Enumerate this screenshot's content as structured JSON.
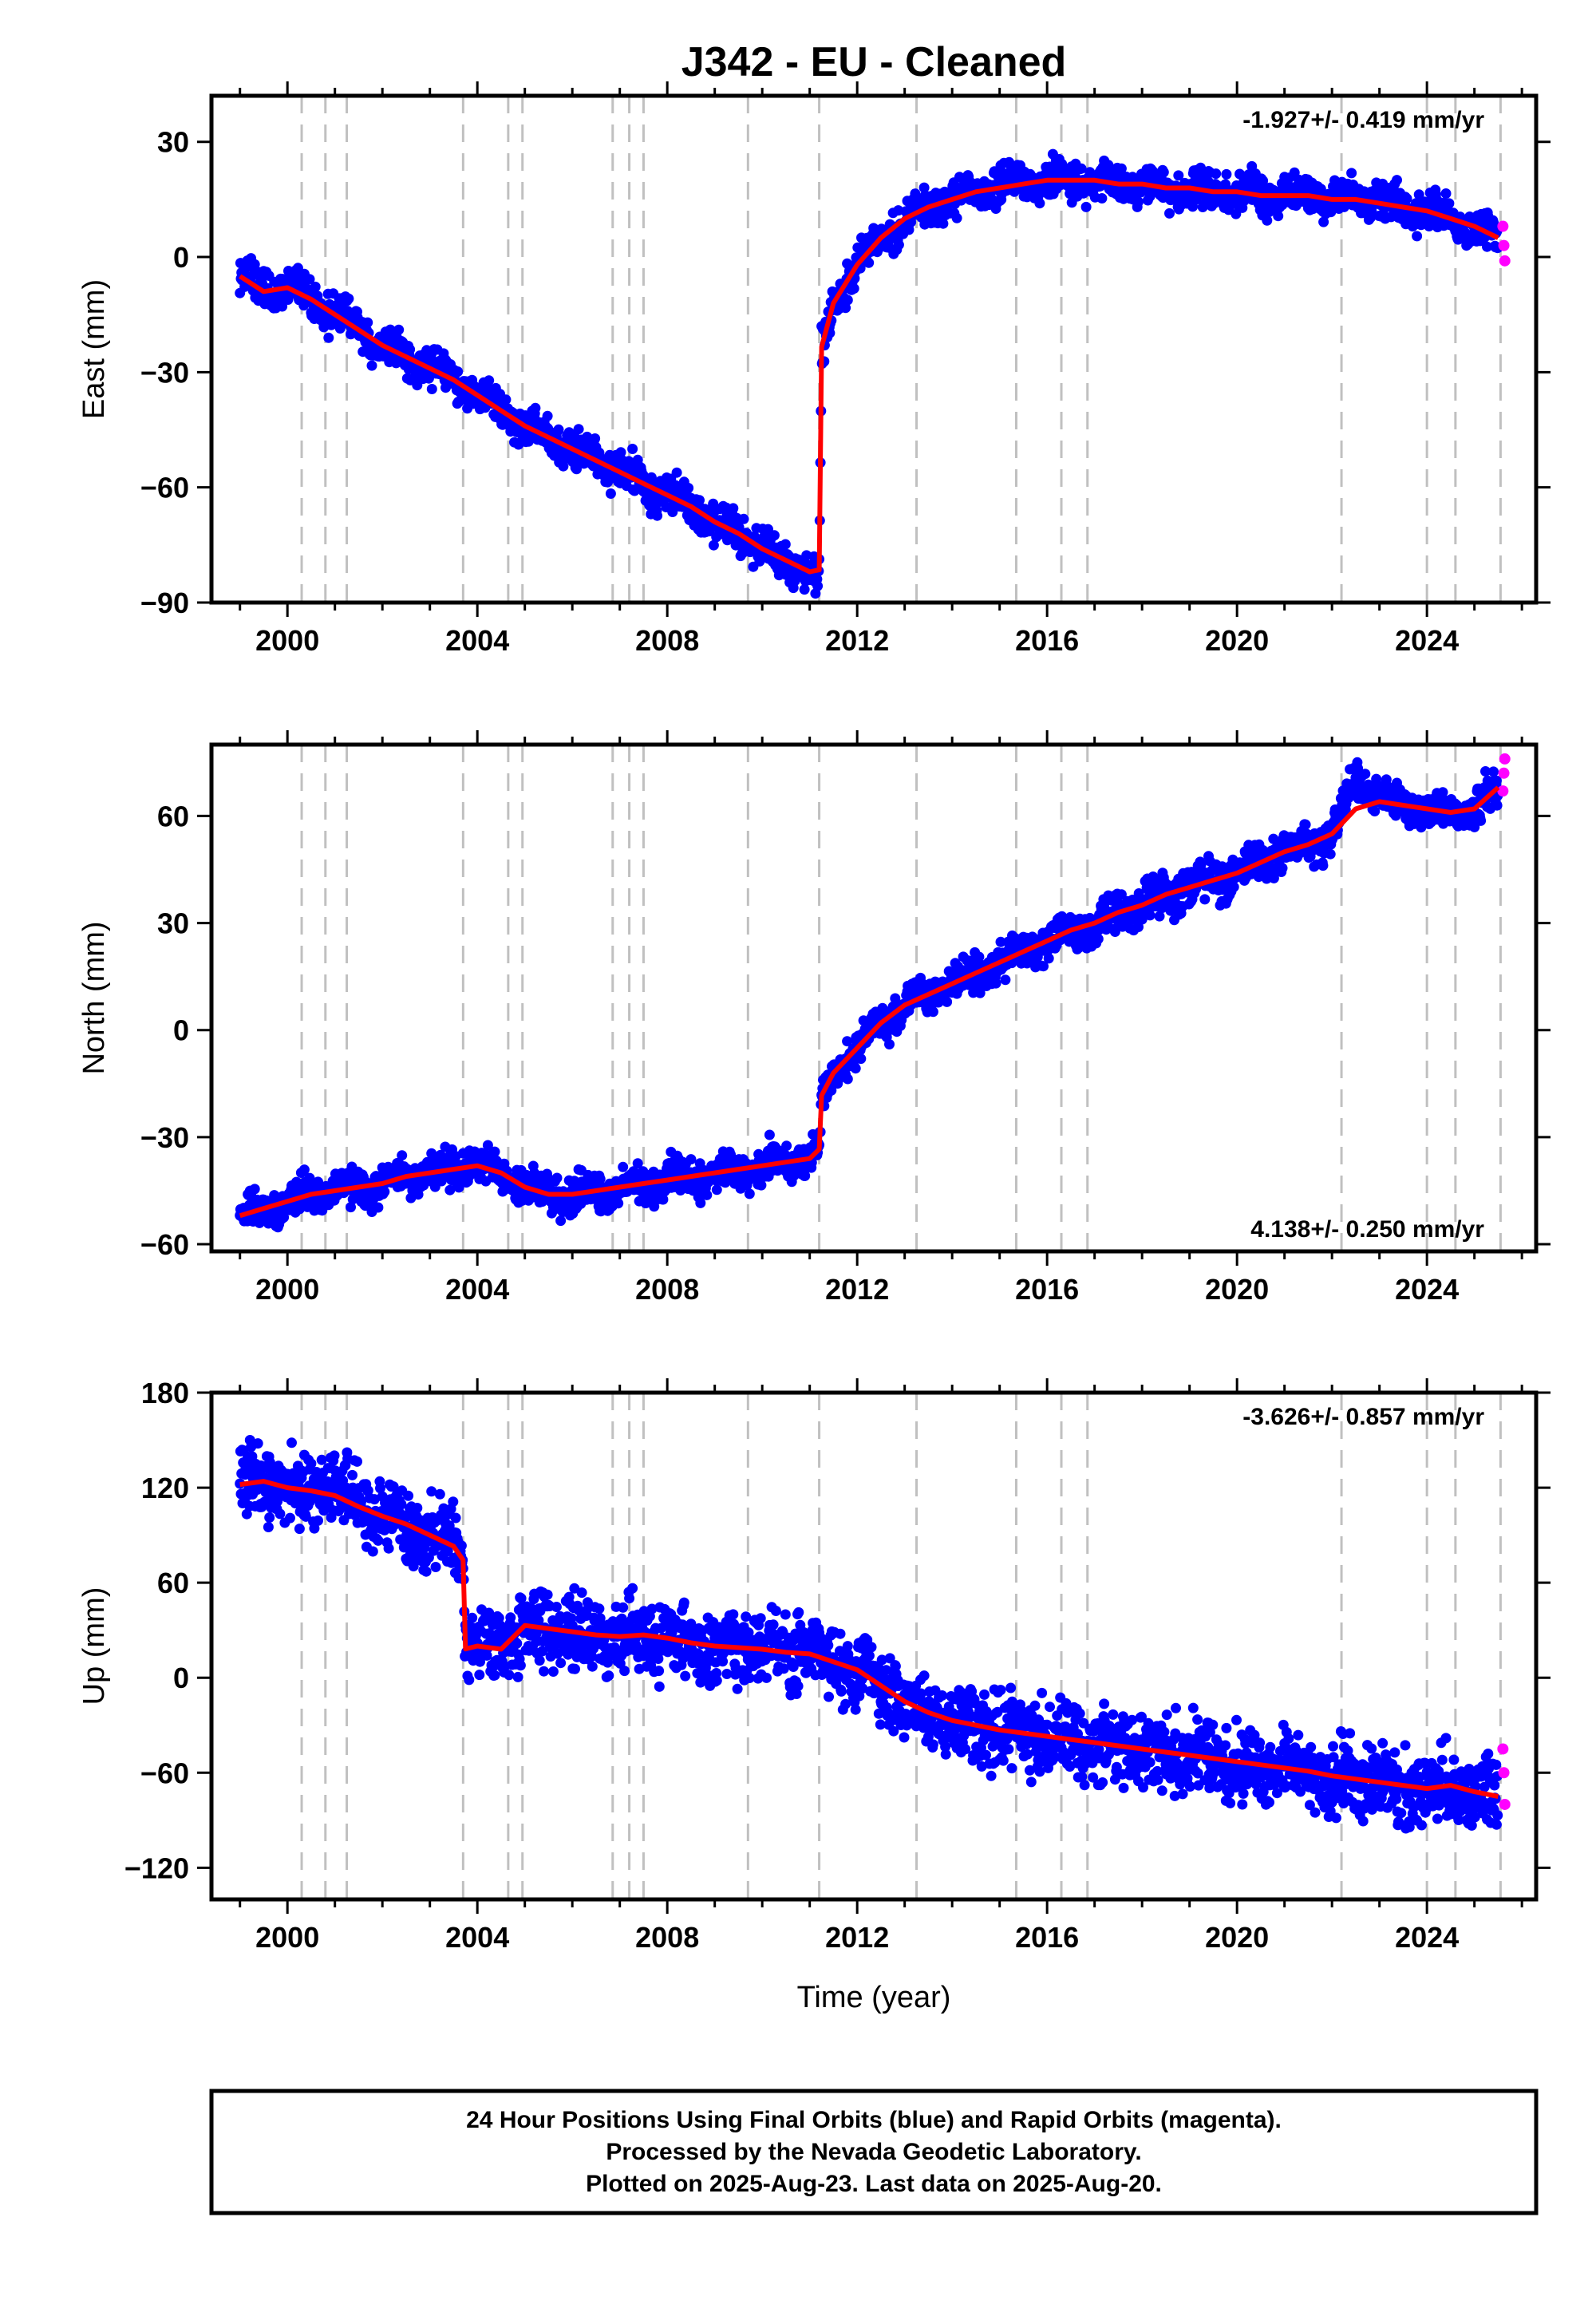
{
  "title": "J342  - EU - Cleaned",
  "xlabel": "Time (year)",
  "footer": {
    "line1": "24 Hour Positions Using Final Orbits (blue) and Rapid Orbits (magenta).",
    "line2": "Processed by the Nevada Geodetic Laboratory.",
    "line3": "Plotted on 2025-Aug-23. Last data on 2025-Aug-20."
  },
  "colors": {
    "final_orbits": "#0000ff",
    "rapid_orbits": "#ff00ff",
    "model": "#ff0000",
    "steps": "#c0c0c0"
  },
  "chart_data": [
    {
      "type": "scatter",
      "component": "east",
      "ylabel": "East (mm)",
      "rate_text": "-1.927+/- 0.419 mm/yr",
      "xlim": [
        1998.4,
        2026.3
      ],
      "ylim": [
        -90,
        42
      ],
      "xticks": [
        2000,
        2004,
        2008,
        2012,
        2016,
        2020,
        2024
      ],
      "yticks": [
        -90,
        -60,
        -30,
        0,
        30
      ],
      "step_epochs": [
        2000.3,
        2000.8,
        2001.25,
        2003.7,
        2004.65,
        2004.95,
        2006.85,
        2007.2,
        2007.5,
        2009.7,
        2011.2,
        2013.25,
        2015.35,
        2016.3,
        2016.85,
        2022.2,
        2024.0,
        2024.6,
        2025.55
      ],
      "series": [
        {
          "name": "Final Orbits (blue)",
          "x": [
            1999.0,
            1999.5,
            2000.0,
            2000.5,
            2001.0,
            2001.5,
            2002.0,
            2002.5,
            2003.0,
            2003.5,
            2004.0,
            2004.5,
            2005.0,
            2005.5,
            2006.0,
            2006.5,
            2007.0,
            2007.5,
            2008.0,
            2008.5,
            2009.0,
            2009.5,
            2010.0,
            2010.5,
            2011.0,
            2011.2,
            2011.25,
            2011.5,
            2012.0,
            2012.5,
            2013.0,
            2013.5,
            2014.0,
            2014.5,
            2015.0,
            2015.5,
            2016.0,
            2016.5,
            2017.0,
            2017.5,
            2018.0,
            2018.5,
            2019.0,
            2019.5,
            2020.0,
            2020.5,
            2021.0,
            2021.5,
            2022.0,
            2022.5,
            2023.0,
            2023.5,
            2024.0,
            2024.5,
            2025.0,
            2025.5
          ],
          "y": [
            -5,
            -9,
            -8,
            -11,
            -15,
            -19,
            -23,
            -26,
            -29,
            -32,
            -36,
            -40,
            -44,
            -47,
            -50,
            -53,
            -56,
            -59,
            -62,
            -65,
            -69,
            -72,
            -76,
            -79,
            -82,
            -84,
            -25,
            -12,
            -2,
            5,
            10,
            13,
            15,
            17,
            18,
            19,
            20,
            20,
            20,
            19,
            19,
            18,
            18,
            17,
            17,
            16,
            16,
            16,
            15,
            15,
            14,
            13,
            12,
            10,
            8,
            5
          ]
        },
        {
          "name": "Rapid Orbits (magenta)",
          "x": [
            2025.6,
            2025.62,
            2025.64
          ],
          "y": [
            8,
            3,
            -1
          ]
        },
        {
          "name": "Model",
          "x": [
            1999.0,
            1999.5,
            2000.0,
            2000.5,
            2001.0,
            2001.5,
            2002.0,
            2002.5,
            2003.0,
            2003.5,
            2004.0,
            2004.5,
            2005.0,
            2005.5,
            2006.0,
            2006.5,
            2007.0,
            2007.5,
            2008.0,
            2008.5,
            2009.0,
            2009.5,
            2010.0,
            2010.5,
            2011.0,
            2011.2,
            2011.25,
            2011.5,
            2012.0,
            2012.5,
            2013.0,
            2013.5,
            2014.0,
            2014.5,
            2015.0,
            2015.5,
            2016.0,
            2016.5,
            2017.0,
            2017.5,
            2018.0,
            2018.5,
            2019.0,
            2019.5,
            2020.0,
            2020.5,
            2021.0,
            2021.5,
            2022.0,
            2022.5,
            2023.0,
            2023.5,
            2024.0,
            2024.5,
            2025.0,
            2025.5
          ],
          "y": [
            -5,
            -9,
            -8,
            -11,
            -15,
            -19,
            -23,
            -26,
            -29,
            -32,
            -36,
            -40,
            -44,
            -47,
            -50,
            -53,
            -56,
            -59,
            -62,
            -65,
            -69,
            -72,
            -76,
            -79,
            -82,
            -83,
            -25,
            -12,
            -2,
            5,
            10,
            13,
            15,
            17,
            18,
            19,
            20,
            20,
            20,
            19,
            19,
            18,
            18,
            17,
            17,
            16,
            16,
            16,
            15,
            15,
            14,
            13,
            12,
            10,
            8,
            5
          ]
        }
      ]
    },
    {
      "type": "scatter",
      "component": "north",
      "ylabel": "North (mm)",
      "rate_text": "4.138+/- 0.250 mm/yr",
      "xlim": [
        1998.4,
        2026.3
      ],
      "ylim": [
        -62,
        80
      ],
      "xticks": [
        2000,
        2004,
        2008,
        2012,
        2016,
        2020,
        2024
      ],
      "yticks": [
        -60,
        -30,
        0,
        30,
        60
      ],
      "step_epochs": [
        2000.3,
        2000.8,
        2001.25,
        2003.7,
        2004.65,
        2004.95,
        2006.85,
        2007.2,
        2007.5,
        2009.7,
        2011.2,
        2013.25,
        2015.35,
        2016.3,
        2016.85,
        2022.2,
        2024.0,
        2024.6,
        2025.55
      ],
      "series": [
        {
          "name": "Final Orbits (blue)",
          "x": [
            1999.0,
            1999.5,
            2000.0,
            2000.5,
            2001.0,
            2001.5,
            2002.0,
            2002.5,
            2003.0,
            2003.5,
            2004.0,
            2004.5,
            2005.0,
            2005.5,
            2006.0,
            2006.5,
            2007.0,
            2007.5,
            2008.0,
            2008.5,
            2009.0,
            2009.5,
            2010.0,
            2010.5,
            2011.0,
            2011.2,
            2011.25,
            2011.5,
            2012.0,
            2012.5,
            2013.0,
            2013.5,
            2014.0,
            2014.5,
            2015.0,
            2015.5,
            2016.0,
            2016.5,
            2017.0,
            2017.5,
            2018.0,
            2018.5,
            2019.0,
            2019.5,
            2020.0,
            2020.5,
            2021.0,
            2021.5,
            2022.0,
            2022.5,
            2023.0,
            2023.5,
            2024.0,
            2024.5,
            2025.0,
            2025.5
          ],
          "y": [
            -52,
            -50,
            -48,
            -46,
            -45,
            -44,
            -43,
            -41,
            -40,
            -39,
            -38,
            -40,
            -44,
            -46,
            -46,
            -45,
            -44,
            -43,
            -42,
            -41,
            -40,
            -39,
            -38,
            -37,
            -36,
            -35,
            -20,
            -12,
            -5,
            2,
            7,
            10,
            13,
            16,
            19,
            22,
            25,
            28,
            30,
            33,
            35,
            38,
            40,
            42,
            44,
            47,
            50,
            52,
            55,
            70,
            65,
            63,
            62,
            61,
            62,
            68
          ]
        },
        {
          "name": "Rapid Orbits (magenta)",
          "x": [
            2025.6,
            2025.62,
            2025.64
          ],
          "y": [
            67,
            72,
            76
          ]
        },
        {
          "name": "Model",
          "x": [
            1999.0,
            1999.5,
            2000.0,
            2000.5,
            2001.0,
            2001.5,
            2002.0,
            2002.5,
            2003.0,
            2003.5,
            2004.0,
            2004.5,
            2005.0,
            2005.5,
            2006.0,
            2006.5,
            2007.0,
            2007.5,
            2008.0,
            2008.5,
            2009.0,
            2009.5,
            2010.0,
            2010.5,
            2011.0,
            2011.2,
            2011.25,
            2011.5,
            2012.0,
            2012.5,
            2013.0,
            2013.5,
            2014.0,
            2014.5,
            2015.0,
            2015.5,
            2016.0,
            2016.5,
            2017.0,
            2017.5,
            2018.0,
            2018.5,
            2019.0,
            2019.5,
            2020.0,
            2020.5,
            2021.0,
            2021.5,
            2022.0,
            2022.5,
            2023.0,
            2023.5,
            2024.0,
            2024.5,
            2025.0,
            2025.5
          ],
          "y": [
            -52,
            -50,
            -48,
            -46,
            -45,
            -44,
            -43,
            -41,
            -40,
            -39,
            -38,
            -40,
            -44,
            -46,
            -46,
            -45,
            -44,
            -43,
            -42,
            -41,
            -40,
            -39,
            -38,
            -37,
            -36,
            -35,
            -20,
            -12,
            -5,
            2,
            7,
            10,
            13,
            16,
            19,
            22,
            25,
            28,
            30,
            33,
            35,
            38,
            40,
            42,
            44,
            47,
            50,
            52,
            55,
            62,
            64,
            63,
            62,
            61,
            62,
            68
          ]
        }
      ]
    },
    {
      "type": "scatter",
      "component": "up",
      "ylabel": "Up (mm)",
      "rate_text": "-3.626+/- 0.857 mm/yr",
      "xlim": [
        1998.4,
        2026.3
      ],
      "ylim": [
        -140,
        180
      ],
      "xticks": [
        2000,
        2004,
        2008,
        2012,
        2016,
        2020,
        2024
      ],
      "yticks": [
        -120,
        -60,
        0,
        60,
        120,
        180
      ],
      "step_epochs": [
        2000.3,
        2000.8,
        2001.25,
        2003.7,
        2004.65,
        2004.95,
        2006.85,
        2007.2,
        2007.5,
        2009.7,
        2011.2,
        2013.25,
        2015.35,
        2016.3,
        2016.85,
        2022.2,
        2024.0,
        2024.6,
        2025.55
      ],
      "series": [
        {
          "name": "Final Orbits (blue)",
          "x": [
            1999.0,
            1999.5,
            2000.0,
            2000.5,
            2001.0,
            2001.5,
            2002.0,
            2002.5,
            2003.0,
            2003.5,
            2003.7,
            2003.75,
            2004.0,
            2004.5,
            2005.0,
            2005.5,
            2006.0,
            2006.5,
            2007.0,
            2007.5,
            2008.0,
            2008.5,
            2009.0,
            2009.5,
            2010.0,
            2010.5,
            2011.0,
            2011.5,
            2012.0,
            2012.5,
            2013.0,
            2013.5,
            2014.0,
            2014.5,
            2015.0,
            2015.5,
            2016.0,
            2016.5,
            2017.0,
            2017.5,
            2018.0,
            2018.5,
            2019.0,
            2019.5,
            2020.0,
            2020.5,
            2021.0,
            2021.5,
            2022.0,
            2022.5,
            2023.0,
            2023.5,
            2024.0,
            2024.5,
            2025.0,
            2025.5
          ],
          "y": [
            122,
            124,
            120,
            118,
            115,
            108,
            102,
            97,
            90,
            83,
            78,
            22,
            20,
            18,
            33,
            31,
            29,
            27,
            26,
            27,
            25,
            22,
            20,
            19,
            18,
            16,
            15,
            10,
            5,
            -5,
            -15,
            -22,
            -27,
            -30,
            -33,
            -35,
            -37,
            -39,
            -41,
            -43,
            -45,
            -47,
            -49,
            -51,
            -53,
            -55,
            -57,
            -59,
            -62,
            -64,
            -66,
            -68,
            -70,
            -68,
            -72,
            -75
          ]
        },
        {
          "name": "Rapid Orbits (magenta)",
          "x": [
            2025.6,
            2025.62,
            2025.64
          ],
          "y": [
            -45,
            -60,
            -80
          ]
        },
        {
          "name": "Model",
          "x": [
            1999.0,
            1999.5,
            2000.0,
            2000.5,
            2001.0,
            2001.5,
            2002.0,
            2002.5,
            2003.0,
            2003.5,
            2003.7,
            2003.75,
            2004.0,
            2004.5,
            2005.0,
            2005.5,
            2006.0,
            2006.5,
            2007.0,
            2007.5,
            2008.0,
            2008.5,
            2009.0,
            2009.5,
            2010.0,
            2010.5,
            2011.0,
            2011.5,
            2012.0,
            2012.5,
            2013.0,
            2013.5,
            2014.0,
            2014.5,
            2015.0,
            2015.5,
            2016.0,
            2016.5,
            2017.0,
            2017.5,
            2018.0,
            2018.5,
            2019.0,
            2019.5,
            2020.0,
            2020.5,
            2021.0,
            2021.5,
            2022.0,
            2022.5,
            2023.0,
            2023.5,
            2024.0,
            2024.5,
            2025.0,
            2025.5
          ],
          "y": [
            122,
            124,
            120,
            118,
            115,
            108,
            102,
            97,
            90,
            83,
            78,
            22,
            20,
            18,
            33,
            31,
            29,
            27,
            26,
            27,
            25,
            22,
            20,
            19,
            18,
            16,
            15,
            10,
            5,
            -5,
            -15,
            -22,
            -27,
            -30,
            -33,
            -35,
            -37,
            -39,
            -41,
            -43,
            -45,
            -47,
            -49,
            -51,
            -53,
            -55,
            -57,
            -59,
            -62,
            -64,
            -66,
            -68,
            -70,
            -68,
            -72,
            -75
          ]
        }
      ]
    }
  ]
}
